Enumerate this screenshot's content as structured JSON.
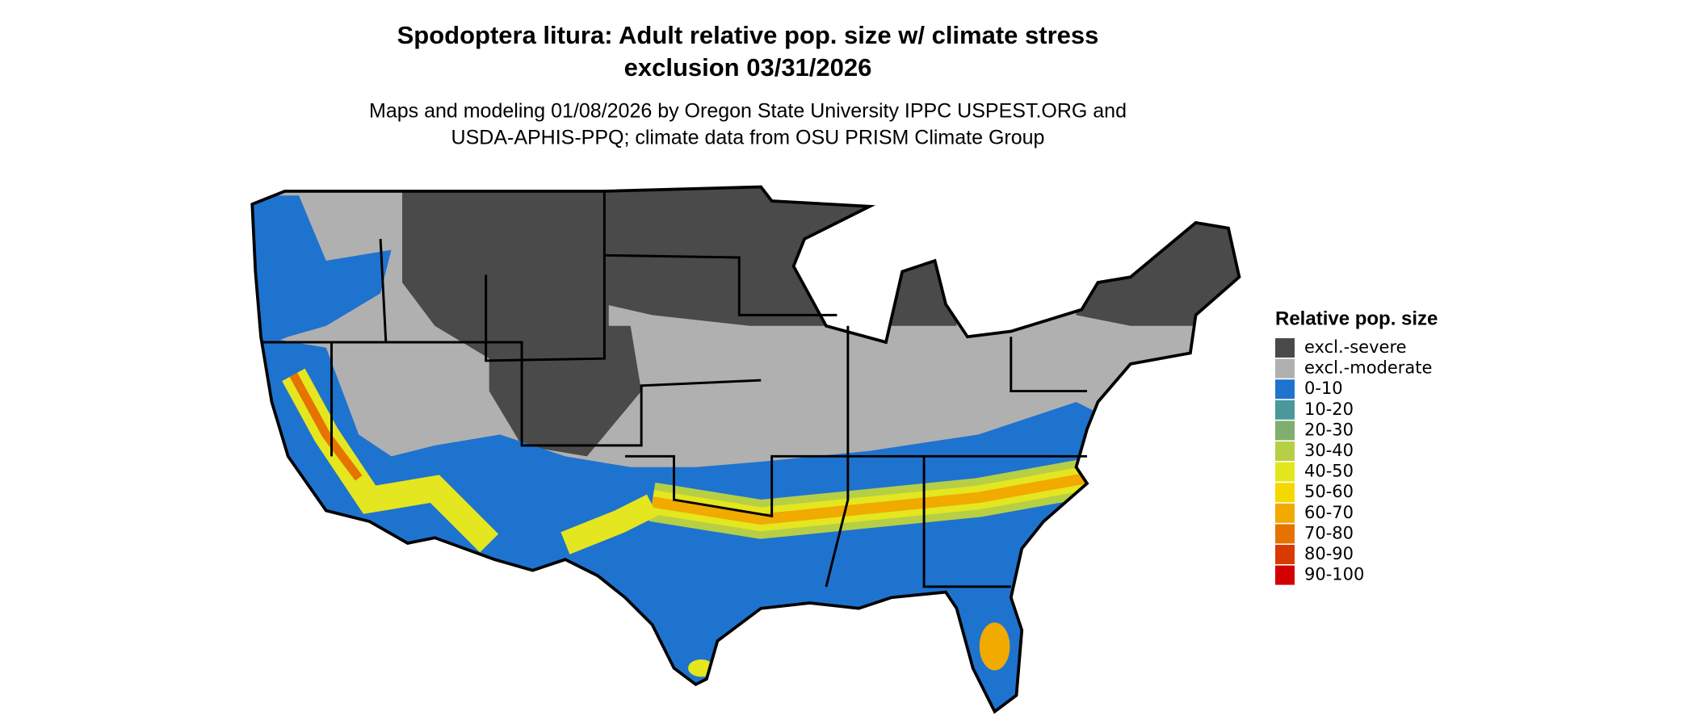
{
  "title": [
    "Spodoptera litura: Adult relative pop. size w/ climate stress",
    "exclusion 03/31/2026"
  ],
  "subtitle": [
    "Maps and modeling 01/08/2026 by Oregon State University IPPC USPEST.ORG and",
    "USDA-APHIS-PPQ; climate data from OSU PRISM Climate Group"
  ],
  "legend": {
    "title": "Relative pop. size",
    "items": [
      {
        "label": "excl.-severe",
        "color": "#4a4a4a"
      },
      {
        "label": "excl.-moderate",
        "color": "#b0b0b0"
      },
      {
        "label": "0-10",
        "color": "#1e73cf"
      },
      {
        "label": "10-20",
        "color": "#4a979c"
      },
      {
        "label": "20-30",
        "color": "#7fae6e"
      },
      {
        "label": "30-40",
        "color": "#b6cf45"
      },
      {
        "label": "40-50",
        "color": "#e4e61f"
      },
      {
        "label": "50-60",
        "color": "#f5d800"
      },
      {
        "label": "60-70",
        "color": "#f0aa00"
      },
      {
        "label": "70-80",
        "color": "#e67200"
      },
      {
        "label": "80-90",
        "color": "#d83a00"
      },
      {
        "label": "90-100",
        "color": "#d20000"
      }
    ]
  }
}
